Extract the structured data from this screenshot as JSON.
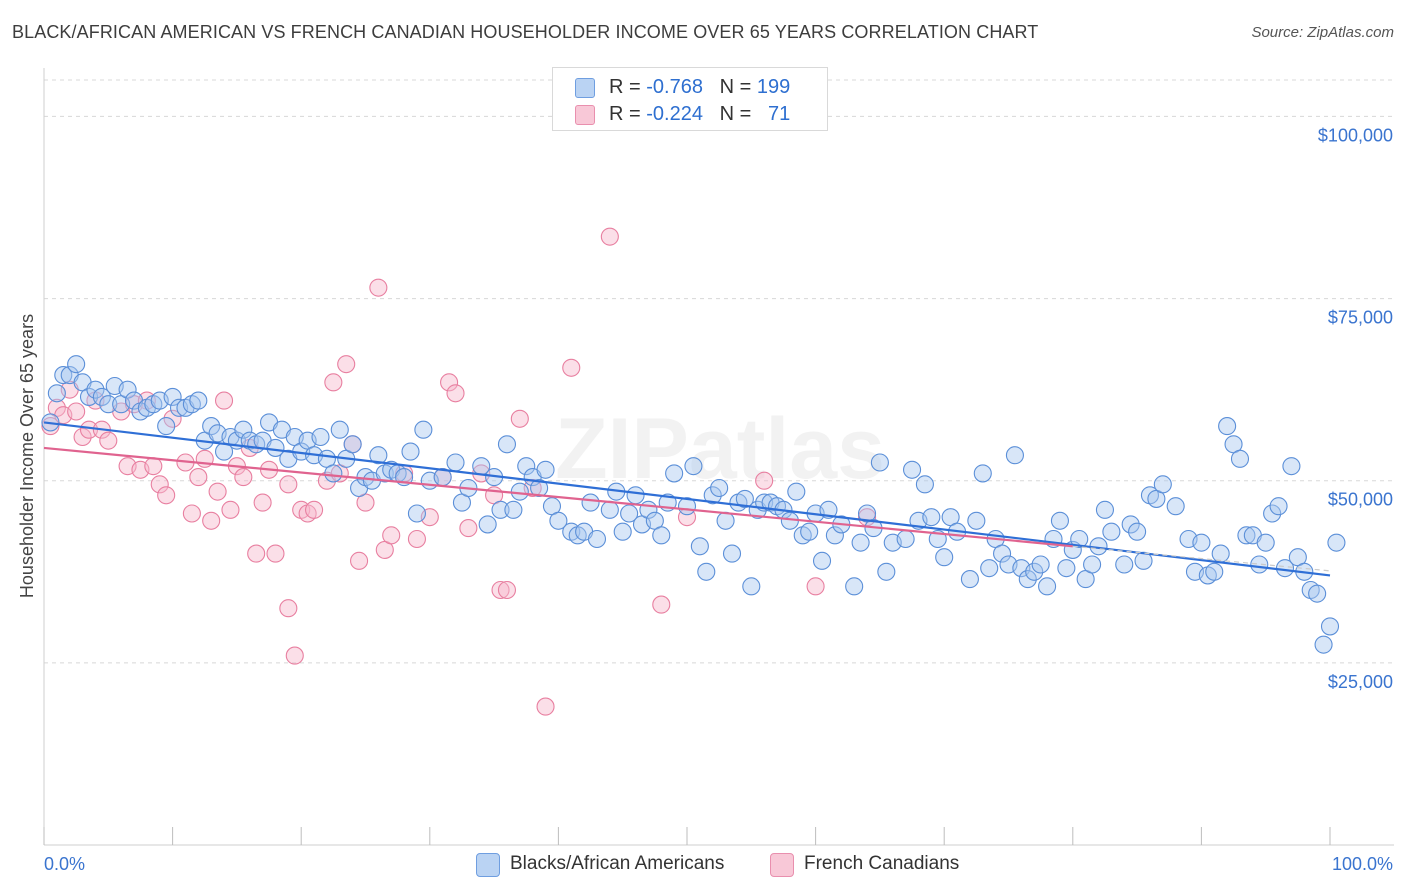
{
  "title": "BLACK/AFRICAN AMERICAN VS FRENCH CANADIAN HOUSEHOLDER INCOME OVER 65 YEARS CORRELATION CHART",
  "source": "Source: ZipAtlas.com",
  "watermark": "ZIPatlas",
  "legend": {
    "rows": [
      {
        "r_label": "R =",
        "r_value": "-0.768",
        "n_label": "N =",
        "n_value": "199"
      },
      {
        "r_label": "R =",
        "r_value": "-0.224",
        "n_label": "N =",
        "n_value": "71"
      }
    ]
  },
  "bottom_legend": [
    "Blacks/African Americans",
    "French Canadians"
  ],
  "colors": {
    "blue_fill": "#a9c7f0",
    "blue_stroke": "#5b8fd8",
    "blue_line": "#2f6fd6",
    "pink_fill": "#f6b8cb",
    "pink_stroke": "#e87fa0",
    "pink_line": "#e0638f",
    "tick_text": "#3a74cf",
    "grid": "#d8d8d8"
  },
  "chart_data": {
    "type": "scatter",
    "title": "BLACK/AFRICAN AMERICAN VS FRENCH CANADIAN HOUSEHOLDER INCOME OVER 65 YEARS CORRELATION CHART",
    "xlabel": "",
    "ylabel": "Householder Income Over 65 years",
    "xlim": [
      0,
      100
    ],
    "ylim": [
      0,
      105000
    ],
    "x_tick_labels": [
      "0.0%",
      "100.0%"
    ],
    "y_ticks": [
      25000,
      50000,
      75000,
      100000
    ],
    "y_tick_labels": [
      "$25,000",
      "$50,000",
      "$75,000",
      "$100,000"
    ],
    "grid": true,
    "legend_position": "top-center",
    "series": [
      {
        "name": "Blacks/African Americans",
        "r": -0.768,
        "n": 199,
        "trend": {
          "x": [
            0,
            100
          ],
          "y": [
            58000,
            37000
          ]
        },
        "points": [
          [
            0.5,
            58000
          ],
          [
            1,
            62000
          ],
          [
            1.5,
            64500
          ],
          [
            2,
            64500
          ],
          [
            2.5,
            66000
          ],
          [
            3,
            63500
          ],
          [
            3.5,
            61500
          ],
          [
            4,
            62500
          ],
          [
            4.5,
            61500
          ],
          [
            5,
            60500
          ],
          [
            5.5,
            63000
          ],
          [
            6,
            60500
          ],
          [
            6.5,
            62500
          ],
          [
            7,
            61000
          ],
          [
            7.5,
            59500
          ],
          [
            8,
            60000
          ],
          [
            8.5,
            60500
          ],
          [
            9,
            61000
          ],
          [
            9.5,
            57500
          ],
          [
            10,
            61500
          ],
          [
            10.5,
            60000
          ],
          [
            11,
            60000
          ],
          [
            11.5,
            60500
          ],
          [
            12,
            61000
          ],
          [
            12.5,
            55500
          ],
          [
            13,
            57500
          ],
          [
            13.5,
            56500
          ],
          [
            14,
            54000
          ],
          [
            14.5,
            56000
          ],
          [
            15,
            55500
          ],
          [
            15.5,
            57000
          ],
          [
            16,
            55500
          ],
          [
            16.5,
            55000
          ],
          [
            17,
            55500
          ],
          [
            17.5,
            58000
          ],
          [
            18,
            54500
          ],
          [
            18.5,
            57000
          ],
          [
            19,
            53000
          ],
          [
            19.5,
            56000
          ],
          [
            20,
            54000
          ],
          [
            20.5,
            55500
          ],
          [
            21,
            53500
          ],
          [
            21.5,
            56000
          ],
          [
            22,
            53000
          ],
          [
            22.5,
            51000
          ],
          [
            23,
            57000
          ],
          [
            23.5,
            53000
          ],
          [
            24,
            55000
          ],
          [
            24.5,
            49000
          ],
          [
            25,
            50500
          ],
          [
            25.5,
            50000
          ],
          [
            26,
            53500
          ],
          [
            26.5,
            51000
          ],
          [
            27,
            51500
          ],
          [
            27.5,
            51000
          ],
          [
            28,
            50500
          ],
          [
            28.5,
            54000
          ],
          [
            29,
            45500
          ],
          [
            29.5,
            57000
          ],
          [
            30,
            50000
          ],
          [
            31,
            50500
          ],
          [
            32,
            52500
          ],
          [
            32.5,
            47000
          ],
          [
            33,
            49000
          ],
          [
            34,
            52000
          ],
          [
            34.5,
            44000
          ],
          [
            35,
            50500
          ],
          [
            35.5,
            46000
          ],
          [
            36,
            55000
          ],
          [
            36.5,
            46000
          ],
          [
            37,
            48500
          ],
          [
            37.5,
            52000
          ],
          [
            38,
            50500
          ],
          [
            38.5,
            49000
          ],
          [
            39,
            51500
          ],
          [
            39.5,
            46500
          ],
          [
            40,
            44500
          ],
          [
            41,
            43000
          ],
          [
            41.5,
            42500
          ],
          [
            42,
            43000
          ],
          [
            42.5,
            47000
          ],
          [
            43,
            42000
          ],
          [
            44,
            46000
          ],
          [
            44.5,
            48500
          ],
          [
            45,
            43000
          ],
          [
            45.5,
            45500
          ],
          [
            46,
            48000
          ],
          [
            46.5,
            44000
          ],
          [
            47,
            46000
          ],
          [
            47.5,
            44500
          ],
          [
            48,
            42500
          ],
          [
            48.5,
            47000
          ],
          [
            49,
            51000
          ],
          [
            50,
            46500
          ],
          [
            50.5,
            52000
          ],
          [
            51,
            41000
          ],
          [
            51.5,
            37500
          ],
          [
            52,
            48000
          ],
          [
            52.5,
            49000
          ],
          [
            53,
            44500
          ],
          [
            53.5,
            40000
          ],
          [
            54,
            47000
          ],
          [
            54.5,
            47500
          ],
          [
            55,
            35500
          ],
          [
            55.5,
            46000
          ],
          [
            56,
            47000
          ],
          [
            56.5,
            47000
          ],
          [
            57,
            46500
          ],
          [
            57.5,
            46000
          ],
          [
            58,
            44500
          ],
          [
            58.5,
            48500
          ],
          [
            59,
            42500
          ],
          [
            59.5,
            43000
          ],
          [
            60,
            45500
          ],
          [
            60.5,
            39000
          ],
          [
            61,
            46000
          ],
          [
            61.5,
            42500
          ],
          [
            62,
            44000
          ],
          [
            63,
            35500
          ],
          [
            63.5,
            41500
          ],
          [
            64,
            45500
          ],
          [
            64.5,
            43500
          ],
          [
            65,
            52500
          ],
          [
            65.5,
            37500
          ],
          [
            66,
            41500
          ],
          [
            67,
            42000
          ],
          [
            67.5,
            51500
          ],
          [
            68,
            44500
          ],
          [
            68.5,
            49500
          ],
          [
            69,
            45000
          ],
          [
            69.5,
            42000
          ],
          [
            70,
            39500
          ],
          [
            70.5,
            45000
          ],
          [
            71,
            43000
          ],
          [
            72,
            36500
          ],
          [
            72.5,
            44500
          ],
          [
            73,
            51000
          ],
          [
            73.5,
            38000
          ],
          [
            74,
            42000
          ],
          [
            74.5,
            40000
          ],
          [
            75,
            38500
          ],
          [
            75.5,
            53500
          ],
          [
            76,
            38000
          ],
          [
            76.5,
            36500
          ],
          [
            77,
            37500
          ],
          [
            77.5,
            38500
          ],
          [
            78,
            35500
          ],
          [
            78.5,
            42000
          ],
          [
            79,
            44500
          ],
          [
            79.5,
            38000
          ],
          [
            80,
            40500
          ],
          [
            80.5,
            42000
          ],
          [
            81,
            36500
          ],
          [
            81.5,
            38500
          ],
          [
            82,
            41000
          ],
          [
            82.5,
            46000
          ],
          [
            83,
            43000
          ],
          [
            84,
            38500
          ],
          [
            84.5,
            44000
          ],
          [
            85,
            43000
          ],
          [
            85.5,
            39000
          ],
          [
            86,
            48000
          ],
          [
            86.5,
            47500
          ],
          [
            87,
            49500
          ],
          [
            88,
            46500
          ],
          [
            89,
            42000
          ],
          [
            89.5,
            37500
          ],
          [
            90,
            41500
          ],
          [
            90.5,
            37000
          ],
          [
            91,
            37500
          ],
          [
            91.5,
            40000
          ],
          [
            92,
            57500
          ],
          [
            92.5,
            55000
          ],
          [
            93,
            53000
          ],
          [
            93.5,
            42500
          ],
          [
            94,
            42500
          ],
          [
            94.5,
            38500
          ],
          [
            95,
            41500
          ],
          [
            95.5,
            45500
          ],
          [
            96,
            46500
          ],
          [
            96.5,
            38000
          ],
          [
            97,
            52000
          ],
          [
            97.5,
            39500
          ],
          [
            98,
            37500
          ],
          [
            98.5,
            35000
          ],
          [
            99,
            34500
          ],
          [
            99.5,
            27500
          ],
          [
            100,
            30000
          ],
          [
            100.5,
            41500
          ]
        ]
      },
      {
        "name": "French Canadians",
        "r": -0.224,
        "n": 71,
        "trend": {
          "x": [
            0,
            80
          ],
          "y": [
            54500,
            41000
          ]
        },
        "points": [
          [
            0.5,
            57500
          ],
          [
            1,
            60000
          ],
          [
            1.5,
            59000
          ],
          [
            2,
            62500
          ],
          [
            2.5,
            59500
          ],
          [
            3,
            56000
          ],
          [
            3.5,
            57000
          ],
          [
            4,
            61000
          ],
          [
            4.5,
            57000
          ],
          [
            5,
            55500
          ],
          [
            6,
            59500
          ],
          [
            6.5,
            52000
          ],
          [
            7,
            60500
          ],
          [
            7.5,
            51500
          ],
          [
            8,
            61000
          ],
          [
            8.5,
            52000
          ],
          [
            9,
            49500
          ],
          [
            9.5,
            48000
          ],
          [
            10,
            58500
          ],
          [
            11,
            52500
          ],
          [
            11.5,
            45500
          ],
          [
            12,
            50500
          ],
          [
            12.5,
            53000
          ],
          [
            13,
            44500
          ],
          [
            13.5,
            48500
          ],
          [
            14,
            61000
          ],
          [
            14.5,
            46000
          ],
          [
            15,
            52000
          ],
          [
            15.5,
            50500
          ],
          [
            16,
            54500
          ],
          [
            16.5,
            40000
          ],
          [
            17,
            47000
          ],
          [
            17.5,
            51500
          ],
          [
            18,
            40000
          ],
          [
            19,
            49500
          ],
          [
            19.5,
            26000
          ],
          [
            20,
            46000
          ],
          [
            20.5,
            45500
          ],
          [
            21,
            46000
          ],
          [
            22,
            50000
          ],
          [
            22.5,
            63500
          ],
          [
            23,
            51000
          ],
          [
            23.5,
            66000
          ],
          [
            24,
            55000
          ],
          [
            24.5,
            39000
          ],
          [
            25,
            47000
          ],
          [
            26,
            76500
          ],
          [
            26.5,
            40500
          ],
          [
            27,
            42500
          ],
          [
            28,
            51000
          ],
          [
            29,
            42000
          ],
          [
            30,
            45000
          ],
          [
            31,
            50500
          ],
          [
            31.5,
            63500
          ],
          [
            32,
            62000
          ],
          [
            33,
            43500
          ],
          [
            34,
            51000
          ],
          [
            35,
            48000
          ],
          [
            35.5,
            35000
          ],
          [
            36,
            35000
          ],
          [
            37,
            58500
          ],
          [
            38,
            49000
          ],
          [
            39,
            19000
          ],
          [
            41,
            65500
          ],
          [
            44,
            83500
          ],
          [
            48,
            33000
          ],
          [
            50,
            45000
          ],
          [
            56,
            50000
          ],
          [
            60,
            35500
          ],
          [
            64,
            45000
          ],
          [
            19,
            32500
          ]
        ]
      }
    ]
  }
}
